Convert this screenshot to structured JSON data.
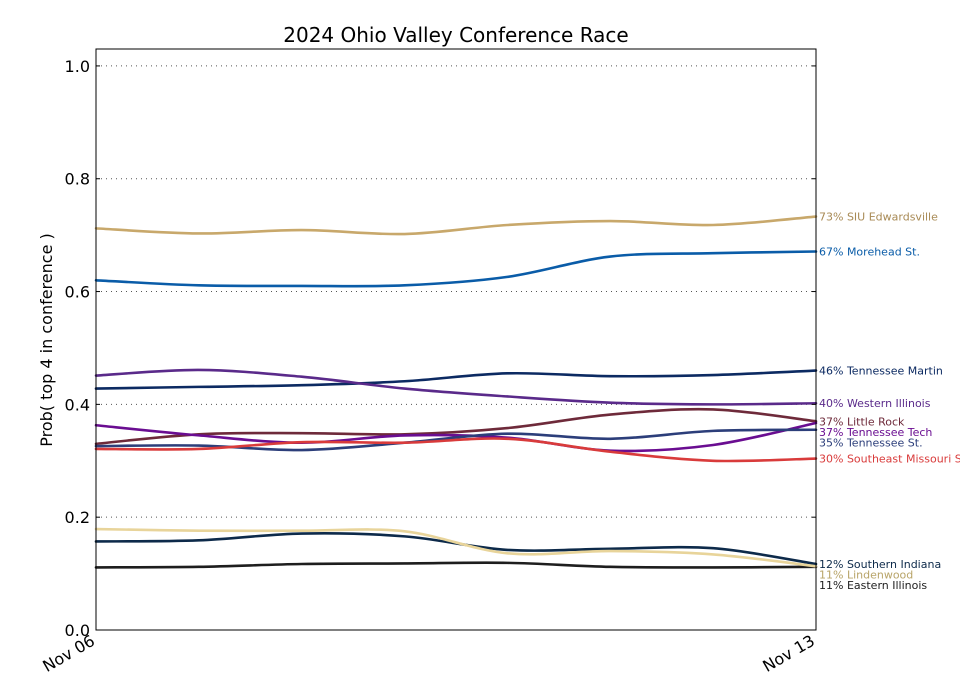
{
  "chart_data": {
    "type": "line",
    "title": "2024 Ohio Valley Conference Race",
    "ylabel": "Prob( top 4 in conference )",
    "xlabel": "",
    "ylim": [
      0,
      1.03
    ],
    "yticks": [
      0.0,
      0.2,
      0.4,
      0.6,
      0.8,
      1.0
    ],
    "ytick_labels": [
      "0.0",
      "0.2",
      "0.4",
      "0.6",
      "0.8",
      "1.0"
    ],
    "x": [
      0,
      1,
      2,
      3,
      4,
      5,
      6,
      7
    ],
    "xlim": [
      0,
      7
    ],
    "xtick_labels": [
      {
        "x": 0,
        "label": "Nov 06"
      },
      {
        "x": 7,
        "label": "Nov 13"
      }
    ],
    "grid": "horizontal dotted",
    "series": [
      {
        "name": "SIU Edwardsville",
        "label": "73% SIU Edwardsville",
        "color": "#c8a86b",
        "label_color": "#a88a55",
        "values": [
          0.712,
          0.703,
          0.709,
          0.702,
          0.718,
          0.725,
          0.718,
          0.733
        ]
      },
      {
        "name": "Morehead St.",
        "label": "67% Morehead St.",
        "color": "#0a5ca8",
        "label_color": "#0a5ca8",
        "values": [
          0.62,
          0.611,
          0.61,
          0.611,
          0.626,
          0.662,
          0.668,
          0.671
        ]
      },
      {
        "name": "Tennessee Martin",
        "label": "46% Tennessee Martin",
        "color": "#0c2a62",
        "label_color": "#0c2a62",
        "values": [
          0.428,
          0.431,
          0.434,
          0.441,
          0.455,
          0.45,
          0.452,
          0.46
        ]
      },
      {
        "name": "Western Illinois",
        "label": "40% Western Illinois",
        "color": "#5a2a8a",
        "label_color": "#5a2a8a",
        "values": [
          0.451,
          0.461,
          0.449,
          0.428,
          0.414,
          0.403,
          0.4,
          0.402
        ]
      },
      {
        "name": "Little Rock",
        "label": "37% Little Rock",
        "color": "#6e2a3a",
        "label_color": "#6e2a3a",
        "values": [
          0.33,
          0.347,
          0.349,
          0.347,
          0.358,
          0.382,
          0.391,
          0.37
        ]
      },
      {
        "name": "Tennessee Tech",
        "label": "37% Tennessee Tech",
        "color": "#6a0d91",
        "label_color": "#6a0d91",
        "values": [
          0.363,
          0.345,
          0.332,
          0.345,
          0.341,
          0.318,
          0.328,
          0.367
        ]
      },
      {
        "name": "Tennessee St.",
        "label": "35% Tennessee St.",
        "color": "#2c3e7a",
        "label_color": "#2c3e7a",
        "values": [
          0.326,
          0.327,
          0.319,
          0.332,
          0.348,
          0.339,
          0.353,
          0.355
        ]
      },
      {
        "name": "Southeast Missouri St.",
        "label": "30% Southeast Missouri St.",
        "color": "#d93b3b",
        "label_color": "#d93b3b",
        "values": [
          0.321,
          0.321,
          0.333,
          0.332,
          0.339,
          0.316,
          0.3,
          0.304
        ]
      },
      {
        "name": "Southern Indiana",
        "label": "12% Southern Indiana",
        "color": "#0d2a4a",
        "label_color": "#0d2a4a",
        "values": [
          0.157,
          0.159,
          0.171,
          0.166,
          0.142,
          0.144,
          0.145,
          0.117
        ]
      },
      {
        "name": "Eastern Illinois",
        "label": "11% Eastern Illinois",
        "color": "#1e1e1e",
        "label_color": "#1e1e1e",
        "values": [
          0.111,
          0.112,
          0.117,
          0.118,
          0.119,
          0.112,
          0.111,
          0.112
        ]
      },
      {
        "name": "Lindenwood",
        "label": "11% Lindenwood",
        "color": "#e8d49a",
        "label_color": "#b8a468",
        "values": [
          0.179,
          0.176,
          0.176,
          0.175,
          0.136,
          0.14,
          0.134,
          0.113
        ]
      }
    ]
  }
}
